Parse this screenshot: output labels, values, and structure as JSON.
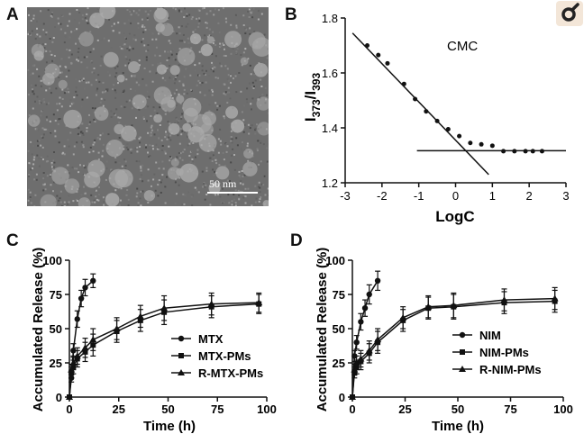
{
  "panels": {
    "a": {
      "letter": "A",
      "scale_text": "50 nm"
    },
    "b": {
      "letter": "B"
    },
    "c": {
      "letter": "C"
    },
    "d": {
      "letter": "D"
    }
  },
  "chart_data": [
    {
      "panel": "B",
      "type": "scatter",
      "xlabel": "LogC",
      "ylabel_main": "I",
      "ylabel_sub1": "373",
      "ylabel_sep": "/I",
      "ylabel_sub2": "393",
      "annotation": "CMC",
      "xlim": [
        -3,
        3
      ],
      "ylim": [
        1.2,
        1.8
      ],
      "xticks": [
        -3,
        -2,
        -1,
        0,
        1,
        2,
        3
      ],
      "yticks": [
        1.2,
        1.4,
        1.6,
        1.8
      ],
      "ytick_labels": [
        "1.2",
        "1.4",
        "1.6",
        "1.8"
      ],
      "points": [
        {
          "x": -2.4,
          "y": 1.7
        },
        {
          "x": -2.1,
          "y": 1.665
        },
        {
          "x": -1.85,
          "y": 1.635
        },
        {
          "x": -1.4,
          "y": 1.56
        },
        {
          "x": -1.1,
          "y": 1.505
        },
        {
          "x": -0.8,
          "y": 1.46
        },
        {
          "x": -0.5,
          "y": 1.425
        },
        {
          "x": -0.2,
          "y": 1.395
        },
        {
          "x": 0.1,
          "y": 1.37
        },
        {
          "x": 0.4,
          "y": 1.345
        },
        {
          "x": 0.7,
          "y": 1.34
        },
        {
          "x": 1.0,
          "y": 1.335
        },
        {
          "x": 1.3,
          "y": 1.315
        },
        {
          "x": 1.6,
          "y": 1.315
        },
        {
          "x": 1.9,
          "y": 1.315
        },
        {
          "x": 2.1,
          "y": 1.315
        },
        {
          "x": 2.35,
          "y": 1.315
        }
      ],
      "fit_lines": [
        {
          "x": [
            -2.8,
            0.9
          ],
          "y": [
            1.745,
            1.23
          ]
        },
        {
          "x": [
            -1.05,
            3.0
          ],
          "y": [
            1.317,
            1.317
          ]
        }
      ]
    },
    {
      "panel": "C",
      "type": "line",
      "xlabel": "Time (h)",
      "ylabel": "Accumulated Release (%)",
      "xlim": [
        0,
        100
      ],
      "ylim": [
        0,
        100
      ],
      "xticks": [
        0,
        25,
        50,
        75,
        100
      ],
      "yticks": [
        0,
        25,
        50,
        75,
        100
      ],
      "legend_position": "bottom-right",
      "series": [
        {
          "name": "MTX",
          "marker": "circle",
          "x": [
            0,
            1,
            2,
            4,
            6,
            8,
            12
          ],
          "y": [
            0,
            14,
            34,
            57,
            72,
            80,
            85
          ],
          "err": [
            0,
            3,
            5,
            6,
            6,
            6,
            5
          ]
        },
        {
          "name": "MTX-PMs",
          "marker": "square",
          "x": [
            0,
            1,
            2,
            4,
            8,
            12,
            24,
            36,
            48,
            72,
            96
          ],
          "y": [
            0,
            18,
            22,
            28,
            33,
            38,
            48,
            56,
            62,
            66,
            68
          ],
          "err": [
            0,
            4,
            5,
            6,
            7,
            8,
            8,
            8,
            9,
            8,
            7
          ]
        },
        {
          "name": "R-MTX-PMs",
          "marker": "triangle",
          "x": [
            0,
            1,
            2,
            4,
            8,
            12,
            24,
            36,
            48,
            72,
            96
          ],
          "y": [
            0,
            20,
            25,
            30,
            36,
            42,
            50,
            59,
            65,
            68,
            69
          ],
          "err": [
            0,
            4,
            5,
            6,
            7,
            8,
            8,
            8,
            9,
            8,
            7
          ]
        }
      ]
    },
    {
      "panel": "D",
      "type": "line",
      "xlabel": "Time (h)",
      "ylabel": "Accumulated Release (%)",
      "xlim": [
        0,
        100
      ],
      "ylim": [
        0,
        100
      ],
      "xticks": [
        0,
        25,
        50,
        75,
        100
      ],
      "yticks": [
        0,
        25,
        50,
        75,
        100
      ],
      "legend_position": "bottom-right",
      "series": [
        {
          "name": "NIM",
          "marker": "circle",
          "x": [
            0,
            1,
            2,
            4,
            6,
            8,
            12
          ],
          "y": [
            0,
            30,
            40,
            55,
            65,
            75,
            85
          ],
          "err": [
            0,
            4,
            5,
            6,
            6,
            7,
            7
          ]
        },
        {
          "name": "NIM-PMs",
          "marker": "square",
          "x": [
            0,
            1,
            2,
            4,
            8,
            12,
            24,
            36,
            48,
            72,
            96
          ],
          "y": [
            0,
            18,
            22,
            26,
            32,
            40,
            56,
            65,
            66,
            69,
            70
          ],
          "err": [
            0,
            4,
            5,
            6,
            7,
            8,
            8,
            8,
            9,
            8,
            8
          ]
        },
        {
          "name": "R-NIM-PMs",
          "marker": "triangle",
          "x": [
            0,
            1,
            2,
            4,
            8,
            12,
            24,
            36,
            48,
            72,
            96
          ],
          "y": [
            0,
            20,
            25,
            28,
            34,
            42,
            58,
            66,
            67,
            71,
            72
          ],
          "err": [
            0,
            4,
            5,
            6,
            7,
            8,
            8,
            8,
            9,
            8,
            8
          ]
        }
      ]
    }
  ]
}
